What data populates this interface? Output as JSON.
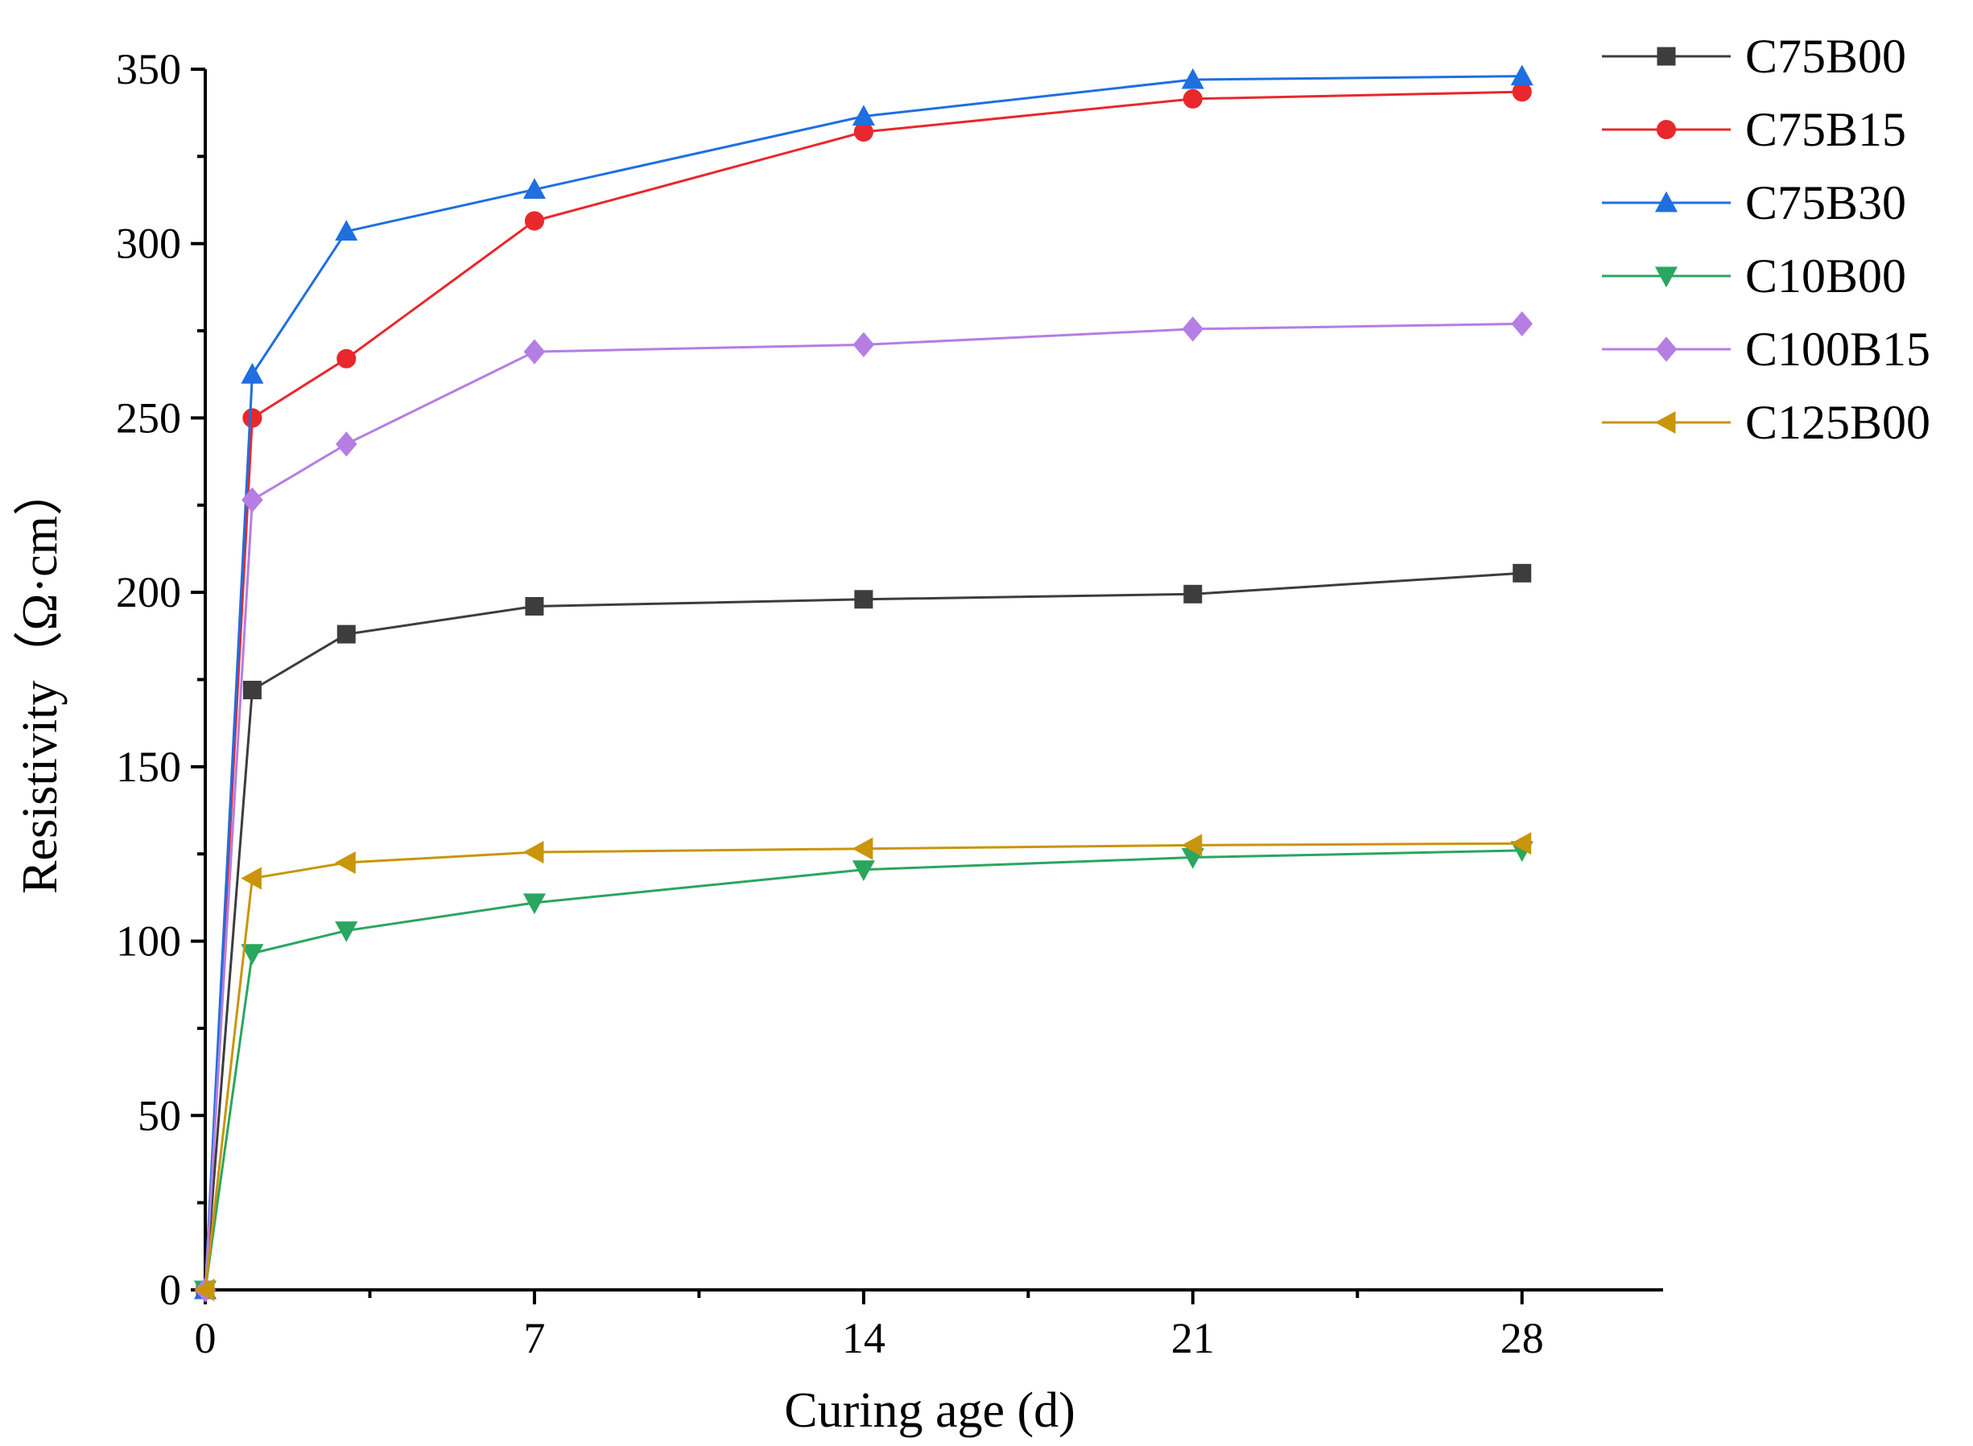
{
  "chart_data": {
    "type": "line",
    "title": "",
    "xlabel": "Curing age (d)",
    "ylabel": "Resistivity（Ω·cm）",
    "xlim": [
      0,
      31
    ],
    "ylim": [
      0,
      350
    ],
    "xticks": [
      0,
      7,
      14,
      21,
      28
    ],
    "yticks": [
      0,
      50,
      100,
      150,
      200,
      250,
      300,
      350
    ],
    "grid": false,
    "legend_position": "top-right",
    "series": [
      {
        "name": "C75B00",
        "color": "#3d3d3d",
        "marker": "square",
        "x": [
          0,
          1,
          3,
          7,
          14,
          21,
          28
        ],
        "y": [
          0,
          172,
          188,
          196,
          198,
          199.5,
          205.5
        ]
      },
      {
        "name": "C75B15",
        "color": "#e8282d",
        "marker": "circle",
        "x": [
          0,
          1,
          3,
          7,
          14,
          21,
          28
        ],
        "y": [
          0,
          250,
          267,
          306.5,
          332,
          341.5,
          343.5
        ]
      },
      {
        "name": "C75B30",
        "color": "#1f6fe0",
        "marker": "triangle-up",
        "x": [
          0,
          1,
          3,
          7,
          14,
          21,
          28
        ],
        "y": [
          0,
          262.5,
          303.5,
          315.5,
          336.5,
          347,
          348
        ]
      },
      {
        "name": "C10B00",
        "color": "#2aa65f",
        "marker": "triangle-down",
        "x": [
          0,
          1,
          3,
          7,
          14,
          21,
          28
        ],
        "y": [
          0,
          96.5,
          103,
          111,
          120.5,
          124,
          126
        ]
      },
      {
        "name": "C100B15",
        "color": "#b57ee3",
        "marker": "diamond",
        "x": [
          0,
          1,
          3,
          7,
          14,
          21,
          28
        ],
        "y": [
          0,
          226.5,
          242.5,
          269,
          271,
          275.5,
          277
        ]
      },
      {
        "name": "C125B00",
        "color": "#c9950a",
        "marker": "triangle-left",
        "x": [
          0,
          1,
          3,
          7,
          14,
          21,
          28
        ],
        "y": [
          0,
          118,
          122.5,
          125.5,
          126.5,
          127.5,
          128
        ]
      }
    ]
  }
}
